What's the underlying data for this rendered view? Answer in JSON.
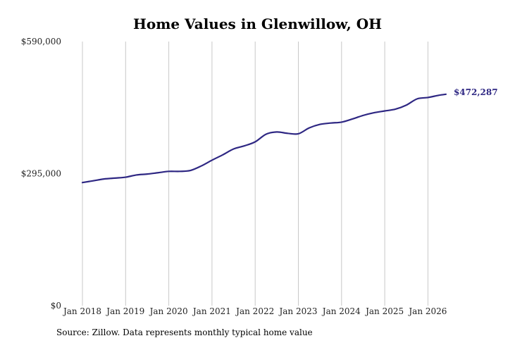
{
  "chart_data": {
    "type": "line",
    "title": "Home Values in Glenwillow, OH",
    "xlabel": "",
    "ylabel": "",
    "ylim": [
      0,
      590000
    ],
    "y_ticks": [
      0,
      295000,
      590000
    ],
    "y_tick_labels": [
      "$0",
      "$295,000",
      "$590,000"
    ],
    "x_ticks": [
      "2018-01",
      "2019-01",
      "2020-01",
      "2021-01",
      "2022-01",
      "2023-01",
      "2024-01",
      "2025-01",
      "2026-01"
    ],
    "x_tick_labels": [
      "Jan 2018",
      "Jan 2019",
      "Jan 2020",
      "Jan 2021",
      "Jan 2022",
      "Jan 2023",
      "Jan 2024",
      "Jan 2025",
      "Jan 2026"
    ],
    "grid": "vertical",
    "line_color": "#2e2783",
    "end_label": "$472,287",
    "series": [
      {
        "x": [
          "2018-01",
          "2018-04",
          "2018-07",
          "2018-10",
          "2019-01",
          "2019-04",
          "2019-07",
          "2019-10",
          "2020-01",
          "2020-04",
          "2020-07",
          "2020-10",
          "2021-01",
          "2021-04",
          "2021-07",
          "2021-10",
          "2022-01",
          "2022-04",
          "2022-07",
          "2022-10",
          "2023-01",
          "2023-04",
          "2023-07",
          "2023-10",
          "2024-01",
          "2024-04",
          "2024-07",
          "2024-10",
          "2025-01",
          "2025-04",
          "2025-07",
          "2025-10",
          "2026-01",
          "2026-04",
          "2026-06"
        ],
        "values": [
          275000,
          279000,
          283000,
          285000,
          287000,
          292000,
          294000,
          297000,
          300000,
          300000,
          302000,
          312000,
          325000,
          337000,
          350000,
          357000,
          366000,
          383000,
          388000,
          385000,
          384000,
          397000,
          405000,
          408000,
          410000,
          417000,
          425000,
          431000,
          435000,
          439000,
          448000,
          462000,
          465000,
          470000,
          472287
        ]
      }
    ]
  },
  "source": {
    "text": "Source: Zillow. Data represents monthly typical home value"
  }
}
